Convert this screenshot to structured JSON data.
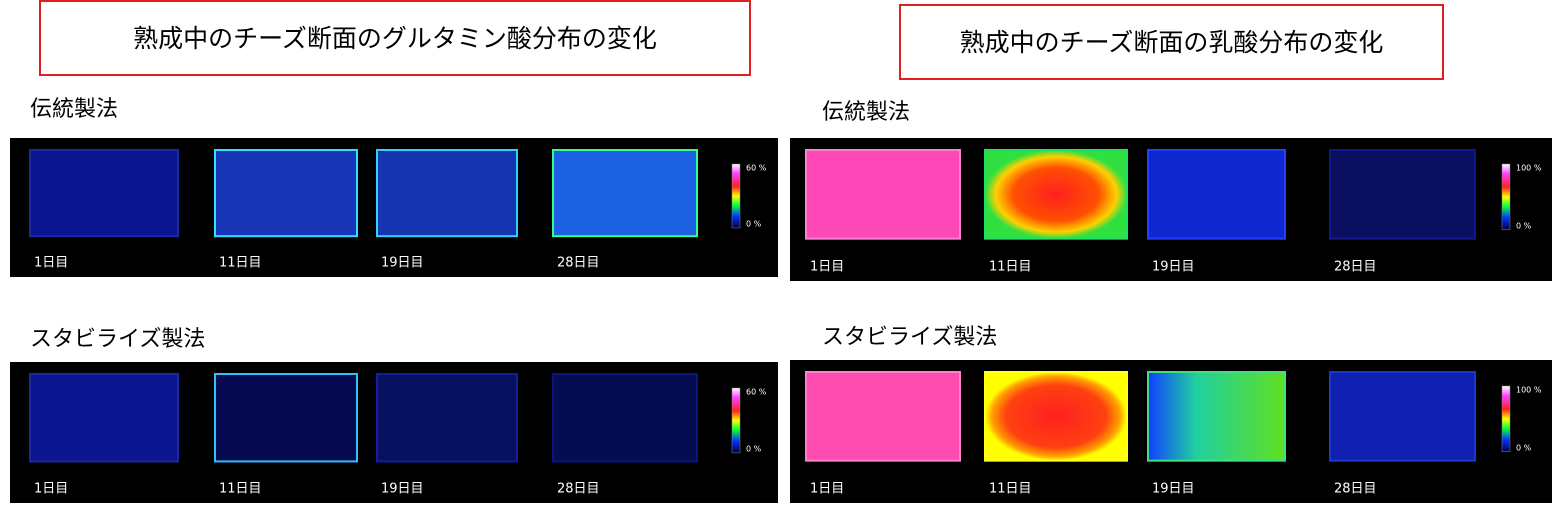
{
  "panels": [
    {
      "title": "熟成中のチーズ断面のグルタミン酸分布の変化",
      "rows": [
        {
          "label": "伝統製法",
          "days": [
            "1日目",
            "11日目",
            "19日目",
            "28日目"
          ],
          "scale": [
            "60 %",
            "0 %"
          ]
        },
        {
          "label": "スタビライズ製法",
          "days": [
            "1日目",
            "11日目",
            "19日目",
            "28日目"
          ],
          "scale": [
            "60 %",
            "0 %"
          ]
        }
      ]
    },
    {
      "title": "熟成中のチーズ断面の乳酸分布の変化",
      "rows": [
        {
          "label": "伝統製法",
          "days": [
            "1日目",
            "11日目",
            "19日目",
            "28日目"
          ],
          "scale": [
            "100 %",
            "0 %"
          ]
        },
        {
          "label": "スタビライズ製法",
          "days": [
            "1日目",
            "11日目",
            "19日目",
            "28日目"
          ],
          "scale": [
            "100 %",
            "0 %"
          ]
        }
      ]
    }
  ]
}
